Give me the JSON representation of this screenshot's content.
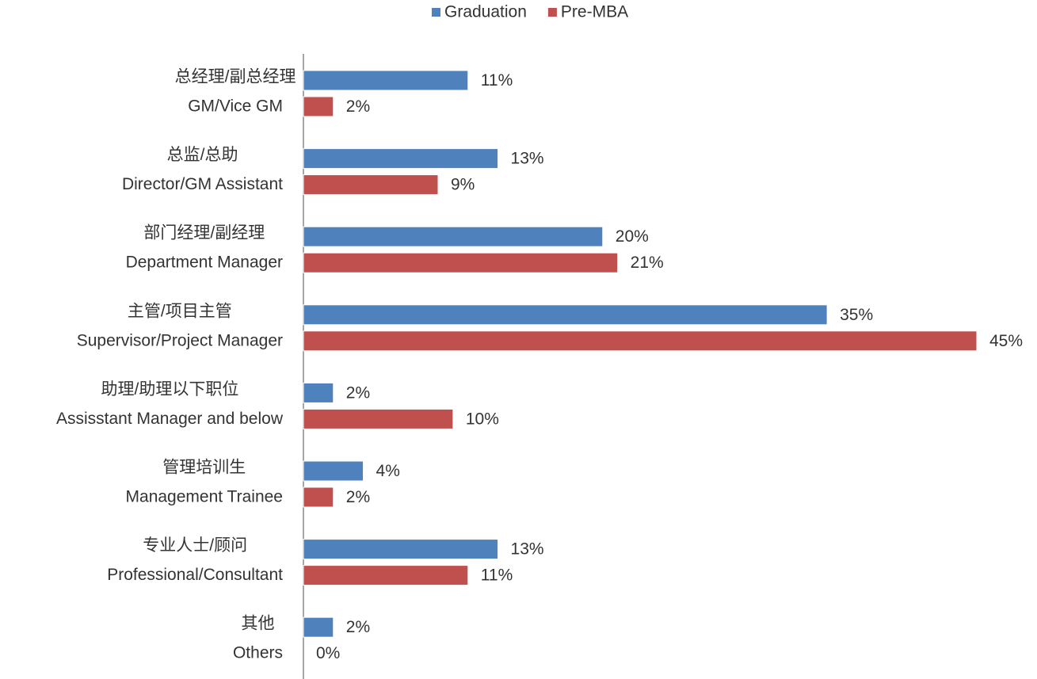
{
  "chart_data": {
    "type": "bar",
    "orientation": "horizontal",
    "categories": [
      [
        "总经理/副总经理",
        "GM/Vice GM"
      ],
      [
        "总监/总助",
        "Director/GM Assistant"
      ],
      [
        "部门经理/副经理",
        "Department Manager"
      ],
      [
        "主管/项目主管",
        "Supervisor/Project Manager"
      ],
      [
        "助理/助理以下职位",
        "Assisstant Manager and below"
      ],
      [
        "管理培训生",
        "Management Trainee"
      ],
      [
        "专业人士/顾问",
        "Professional/Consultant"
      ],
      [
        "其他",
        "Others"
      ]
    ],
    "series": [
      {
        "name": "Graduation",
        "color": "#4f81bd",
        "values": [
          11,
          13,
          20,
          35,
          2,
          4,
          13,
          2
        ],
        "value_labels": [
          "11%",
          "13%",
          "20%",
          "35%",
          "2%",
          "4%",
          "13%",
          "2%"
        ]
      },
      {
        "name": "Pre-MBA",
        "color": "#c0504d",
        "values": [
          2,
          9,
          21,
          45,
          10,
          2,
          11,
          0
        ],
        "value_labels": [
          "2%",
          "9%",
          "21%",
          "45%",
          "10%",
          "2%",
          "11%",
          "0%"
        ]
      }
    ],
    "xlim": [
      0,
      45
    ],
    "legend": "top"
  }
}
